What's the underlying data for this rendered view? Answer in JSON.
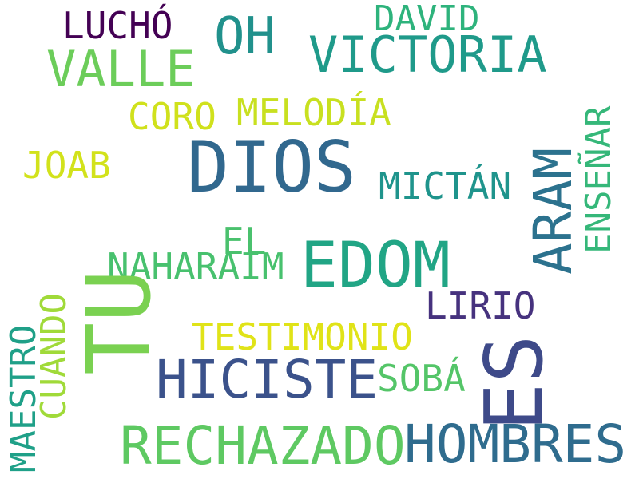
{
  "background": "#ffffff",
  "words": {
    "dios": {
      "text": "DIOS",
      "color": "#31688e"
    },
    "tu": {
      "text": "TU",
      "color": "#7ad151"
    },
    "es": {
      "text": "ES",
      "color": "#3e4a89"
    },
    "edom": {
      "text": "EDOM",
      "color": "#21a585"
    },
    "hombres": {
      "text": "HOMBRES",
      "color": "#2f6c8e"
    },
    "hiciste": {
      "text": "HICISTE",
      "color": "#3b528b"
    },
    "rechazado": {
      "text": "RECHAZADO",
      "color": "#5ec962"
    },
    "victoria": {
      "text": "VICTORIA",
      "color": "#1f9a8a"
    },
    "valle": {
      "text": "VALLE",
      "color": "#6ccd5a"
    },
    "oh": {
      "text": "OH",
      "color": "#21918c"
    },
    "aram": {
      "text": "ARAM",
      "color": "#2c728e"
    },
    "lucho": {
      "text": "LUCHÓ",
      "color": "#440154"
    },
    "david": {
      "text": "DAVID",
      "color": "#2eb37c"
    },
    "melodia": {
      "text": "MELODÍA",
      "color": "#c8e020"
    },
    "coro": {
      "text": "CORO",
      "color": "#d0e11c"
    },
    "joab": {
      "text": "JOAB",
      "color": "#d2e21b"
    },
    "mictan": {
      "text": "MICTÁN",
      "color": "#1f948c"
    },
    "el": {
      "text": "EL",
      "color": "#4ac16d"
    },
    "naharaim": {
      "text": "NAHARAIM",
      "color": "#48c16e"
    },
    "lirio": {
      "text": "LIRIO",
      "color": "#46327e"
    },
    "testimonio": {
      "text": "TESTIMONIO",
      "color": "#e0e318"
    },
    "soba": {
      "text": "SOBÁ",
      "color": "#54c568"
    },
    "ensenar": {
      "text": "ENSEÑAR",
      "color": "#35b779"
    },
    "cuando": {
      "text": "CUANDO",
      "color": "#a0da39"
    },
    "maestro": {
      "text": "MAESTRO",
      "color": "#1fa088"
    }
  }
}
